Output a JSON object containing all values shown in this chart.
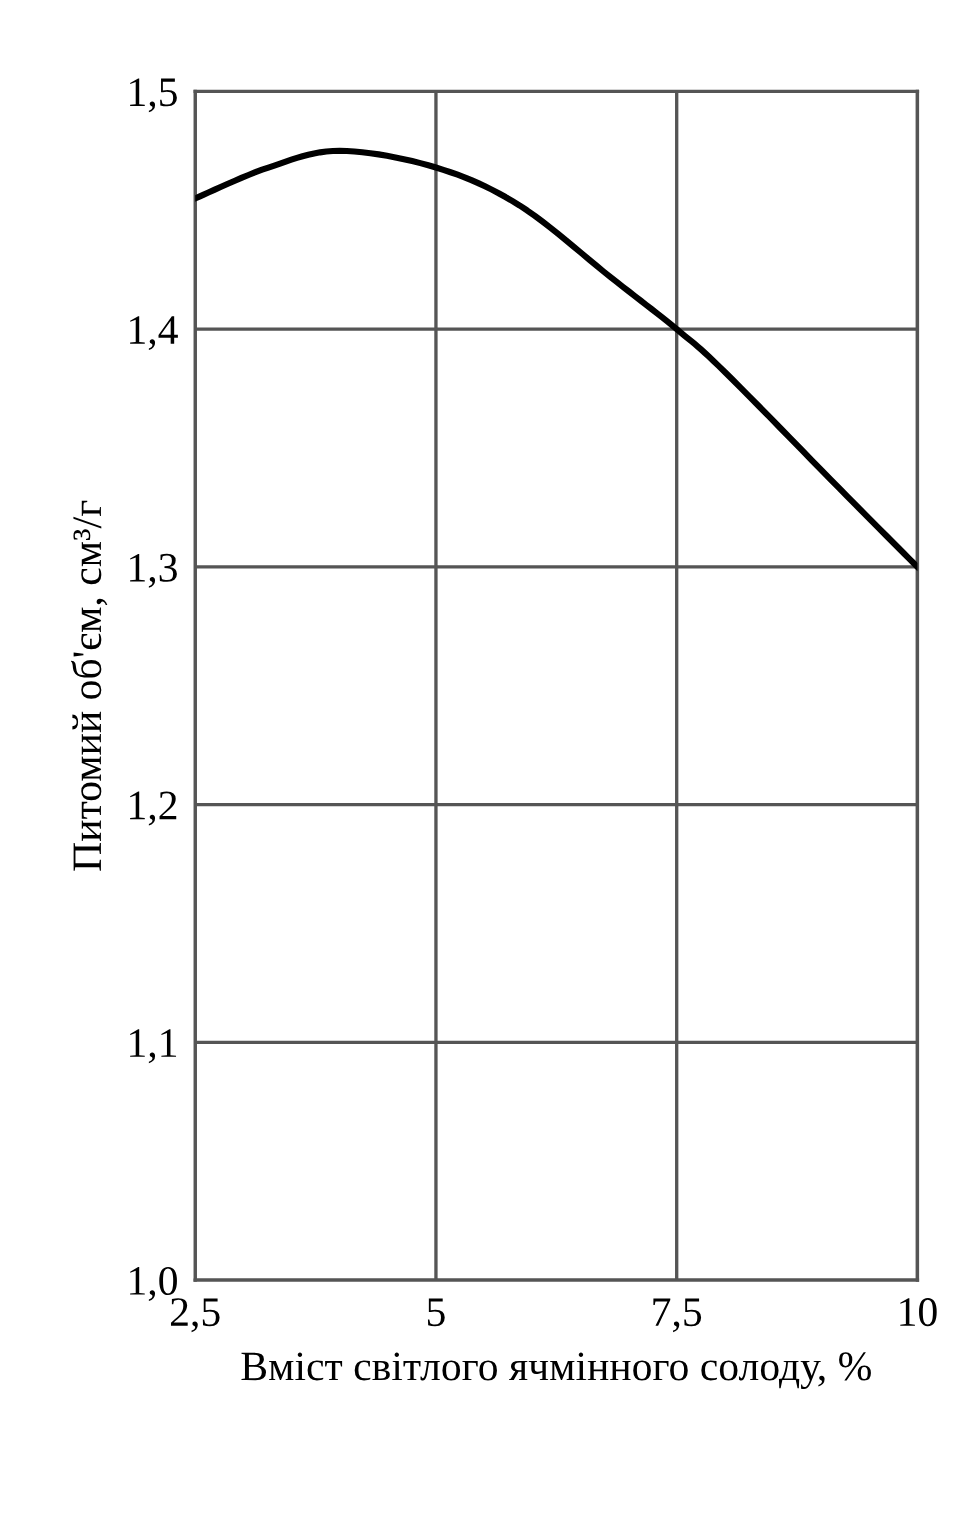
{
  "chart_data": {
    "type": "line",
    "xlabel": "Вміст світлого ячмінного солоду, %",
    "ylabel": "Питомий об'єм, см³/г",
    "x": [
      2.5,
      3.26,
      4.0,
      5.0,
      5.87,
      6.81,
      7.5,
      8.0,
      9.19,
      10.0
    ],
    "series": [
      {
        "color": "#000000",
        "values": [
          1.455,
          1.468,
          1.475,
          1.468,
          1.452,
          1.422,
          1.4,
          1.382,
          1.333,
          1.3
        ]
      }
    ],
    "xlim": [
      2.5,
      10
    ],
    "ylim": [
      1.0,
      1.5
    ],
    "xticks": [
      {
        "value": 2.5,
        "label": "2,5"
      },
      5,
      {
        "value": 7.5,
        "label": "7,5"
      },
      10
    ],
    "yticks": [
      {
        "value": 1.0,
        "label": "1,0"
      },
      {
        "value": 1.1,
        "label": "1,1"
      },
      {
        "value": 1.2,
        "label": "1,2"
      },
      {
        "value": 1.3,
        "label": "1,3"
      },
      {
        "value": 1.4,
        "label": "1,4"
      },
      {
        "value": 1.5,
        "label": "1,5"
      }
    ],
    "grid": true,
    "marker": "none",
    "line_style": "solid"
  }
}
